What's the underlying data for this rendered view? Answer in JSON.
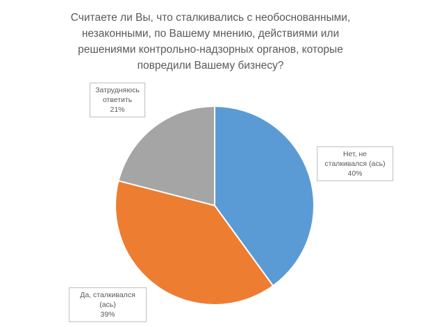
{
  "chart_data": {
    "type": "pie",
    "title": "Считаете ли Вы, что сталкивались с необоснованными,\nнезаконными, по Вашему мнению, действиями или\nрешениями контрольно-надзорных органов, которые\nповредили Вашему бизнесу?",
    "start_angle_deg": 0,
    "direction": "clockwise",
    "slices": [
      {
        "label_lines": [
          "Нет, не",
          "сталкивался (ась)"
        ],
        "value": 40,
        "value_label": "40%",
        "color": "#5b9bd5"
      },
      {
        "label_lines": [
          "Да, сталкивался",
          "(ась)"
        ],
        "value": 39,
        "value_label": "39%",
        "color": "#ed7d31"
      },
      {
        "label_lines": [
          "Затрудняюсь",
          "ответить"
        ],
        "value": 21,
        "value_label": "21%",
        "color": "#a5a5a5"
      }
    ]
  }
}
